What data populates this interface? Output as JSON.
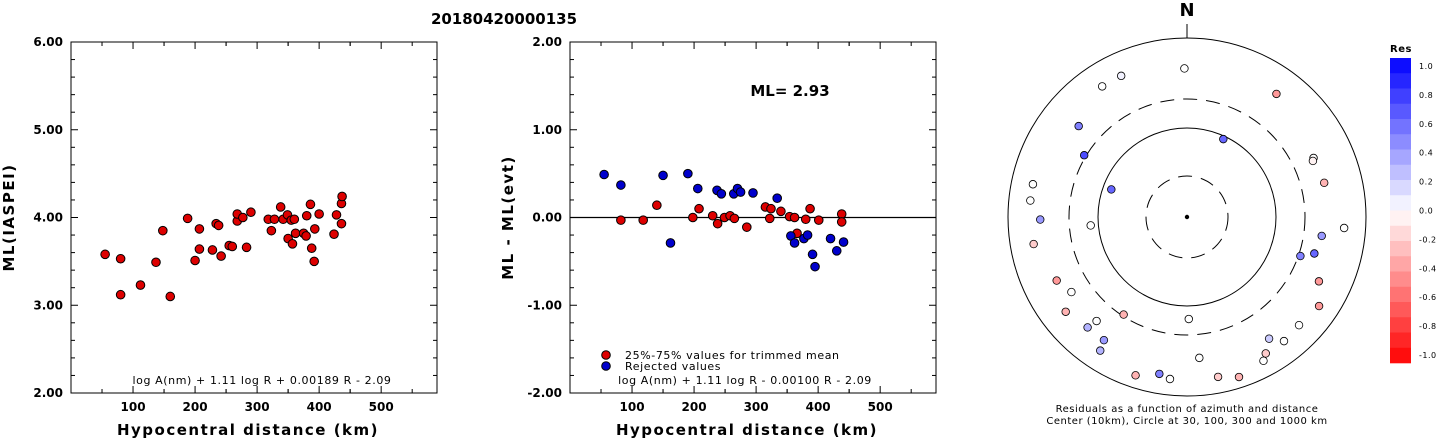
{
  "title": "20180420000135",
  "chart_data": [
    {
      "type": "scatter",
      "xlabel": "Hypocentral distance (km)",
      "ylabel": "ML(IASPEI)",
      "xlim": [
        0,
        590
      ],
      "ylim": [
        2.0,
        6.0
      ],
      "x_ticks": [
        "100",
        "200",
        "300",
        "400",
        "500"
      ],
      "y_ticks": [
        "2.00",
        "3.00",
        "4.00",
        "5.00",
        "6.00"
      ],
      "formula": "log A(nm) + 1.11 log R + 0.00189 R - 2.09",
      "series": [
        {
          "color": "#dd0000",
          "points": [
            [
              55,
              3.58
            ],
            [
              80,
              3.53
            ],
            [
              80,
              3.12
            ],
            [
              112,
              3.23
            ],
            [
              137,
              3.49
            ],
            [
              148,
              3.85
            ],
            [
              160,
              3.1
            ],
            [
              188,
              3.99
            ],
            [
              200,
              3.51
            ],
            [
              207,
              3.87
            ],
            [
              207,
              3.64
            ],
            [
              228,
              3.63
            ],
            [
              234,
              3.93
            ],
            [
              238,
              3.91
            ],
            [
              242,
              3.56
            ],
            [
              255,
              3.68
            ],
            [
              260,
              3.67
            ],
            [
              268,
              3.96
            ],
            [
              268,
              4.04
            ],
            [
              277,
              4.0
            ],
            [
              283,
              3.66
            ],
            [
              290,
              4.06
            ],
            [
              318,
              3.98
            ],
            [
              323,
              3.85
            ],
            [
              328,
              3.98
            ],
            [
              338,
              4.12
            ],
            [
              342,
              3.98
            ],
            [
              349,
              4.03
            ],
            [
              350,
              3.76
            ],
            [
              355,
              3.97
            ],
            [
              357,
              3.7
            ],
            [
              360,
              3.98
            ],
            [
              362,
              3.82
            ],
            [
              375,
              3.82
            ],
            [
              379,
              3.79
            ],
            [
              380,
              4.02
            ],
            [
              386,
              4.15
            ],
            [
              388,
              3.65
            ],
            [
              392,
              3.5
            ],
            [
              393,
              3.87
            ],
            [
              400,
              4.04
            ],
            [
              424,
              3.81
            ],
            [
              428,
              4.03
            ],
            [
              436,
              3.93
            ],
            [
              436,
              4.16
            ],
            [
              437,
              4.24
            ]
          ]
        }
      ]
    },
    {
      "type": "scatter",
      "xlabel": "Hypocentral distance (km)",
      "ylabel": "ML - ML(evt)",
      "xlim": [
        0,
        590
      ],
      "ylim": [
        -2.0,
        2.0
      ],
      "x_ticks": [
        "100",
        "200",
        "300",
        "400",
        "500"
      ],
      "y_ticks": [
        "-2.00",
        "-1.00",
        "0.00",
        "1.00",
        "2.00"
      ],
      "annotation": "ML= 2.93",
      "formula": "log A(nm) + 1.11 log R - 0.00100 R - 2.09",
      "legend": [
        {
          "label": "25%-75% values for trimmed mean",
          "color": "#dd0000"
        },
        {
          "label": "Rejected values",
          "color": "#0000cc"
        }
      ],
      "series": [
        {
          "name": "25%-75% values for trimmed mean",
          "color": "#dd0000",
          "points": [
            [
              82,
              -0.03
            ],
            [
              118,
              -0.03
            ],
            [
              140,
              0.14
            ],
            [
              198,
              0.0
            ],
            [
              208,
              0.1
            ],
            [
              230,
              0.02
            ],
            [
              238,
              -0.07
            ],
            [
              249,
              0.0
            ],
            [
              258,
              0.02
            ],
            [
              265,
              -0.01
            ],
            [
              285,
              -0.11
            ],
            [
              315,
              0.12
            ],
            [
              322,
              -0.01
            ],
            [
              324,
              0.1
            ],
            [
              340,
              0.07
            ],
            [
              354,
              0.01
            ],
            [
              362,
              0.0
            ],
            [
              366,
              -0.18
            ],
            [
              380,
              -0.02
            ],
            [
              387,
              0.1
            ],
            [
              401,
              -0.03
            ],
            [
              438,
              0.04
            ],
            [
              438,
              -0.05
            ]
          ]
        },
        {
          "name": "Rejected values",
          "color": "#0000cc",
          "points": [
            [
              55,
              0.49
            ],
            [
              82,
              0.37
            ],
            [
              150,
              0.48
            ],
            [
              162,
              -0.29
            ],
            [
              190,
              0.5
            ],
            [
              206,
              0.33
            ],
            [
              237,
              0.31
            ],
            [
              244,
              0.27
            ],
            [
              264,
              0.27
            ],
            [
              270,
              0.33
            ],
            [
              275,
              0.29
            ],
            [
              295,
              0.28
            ],
            [
              334,
              0.22
            ],
            [
              356,
              -0.21
            ],
            [
              362,
              -0.29
            ],
            [
              377,
              -0.24
            ],
            [
              383,
              -0.2
            ],
            [
              391,
              -0.42
            ],
            [
              395,
              -0.56
            ],
            [
              420,
              -0.24
            ],
            [
              430,
              -0.38
            ],
            [
              441,
              -0.28
            ]
          ]
        }
      ]
    },
    {
      "type": "scatter",
      "subtype": "polar",
      "north_label": "N",
      "caption_line1": "Residuals as a function of azimuth and distance",
      "caption_line2": "Center (10km), Circle at 30, 100, 300 and 1000 km",
      "rings_km": [
        30,
        100,
        300,
        1000
      ],
      "colorbar": {
        "title": "Res",
        "labels": [
          "1.0",
          "0.8",
          "0.6",
          "0.4",
          "0.2",
          "0.0",
          "-0.2",
          "-0.4",
          "-0.6",
          "-0.8",
          "-1.0"
        ]
      },
      "points": [
        {
          "az": 327,
          "r": 0.87,
          "res": 0.0
        },
        {
          "az": 335,
          "r": 0.87,
          "res": 0.05
        },
        {
          "az": 359,
          "r": 0.83,
          "res": 0.0
        },
        {
          "az": 36,
          "r": 0.85,
          "res": -0.4
        },
        {
          "az": 65,
          "r": 0.78,
          "res": 0.0
        },
        {
          "az": 66,
          "r": 0.77,
          "res": -0.05
        },
        {
          "az": 76,
          "r": 0.79,
          "res": -0.3
        },
        {
          "az": 310,
          "r": 0.79,
          "res": 0.5
        },
        {
          "az": 301,
          "r": 0.67,
          "res": 0.7
        },
        {
          "az": 25,
          "r": 0.48,
          "res": 0.6
        },
        {
          "az": 290,
          "r": 0.45,
          "res": 0.6
        },
        {
          "az": 282,
          "r": 0.88,
          "res": 0.0
        },
        {
          "az": 276,
          "r": 0.88,
          "res": 0.0
        },
        {
          "az": 269,
          "r": 0.82,
          "res": 0.4
        },
        {
          "az": 260,
          "r": 0.87,
          "res": -0.2
        },
        {
          "az": 265,
          "r": 0.54,
          "res": 0.0
        },
        {
          "az": 98,
          "r": 0.76,
          "res": 0.4
        },
        {
          "az": 94,
          "r": 0.88,
          "res": 0.0
        },
        {
          "az": 106,
          "r": 0.74,
          "res": 0.6
        },
        {
          "az": 109,
          "r": 0.67,
          "res": 0.5
        },
        {
          "az": 116,
          "r": 0.82,
          "res": -0.4
        },
        {
          "az": 244,
          "r": 0.81,
          "res": -0.4
        },
        {
          "az": 237,
          "r": 0.77,
          "res": 0.0
        },
        {
          "az": 232,
          "r": 0.86,
          "res": -0.3
        },
        {
          "az": 222,
          "r": 0.83,
          "res": 0.3
        },
        {
          "az": 221,
          "r": 0.77,
          "res": 0.0
        },
        {
          "az": 214,
          "r": 0.83,
          "res": 0.4
        },
        {
          "az": 213,
          "r": 0.89,
          "res": 0.3
        },
        {
          "az": 213,
          "r": 0.65,
          "res": -0.3
        },
        {
          "az": 198,
          "r": 0.93,
          "res": -0.3
        },
        {
          "az": 190,
          "r": 0.89,
          "res": 0.5
        },
        {
          "az": 186,
          "r": 0.91,
          "res": 0.0
        },
        {
          "az": 175,
          "r": 0.79,
          "res": 0.0
        },
        {
          "az": 169,
          "r": 0.91,
          "res": -0.2
        },
        {
          "az": 162,
          "r": 0.94,
          "res": -0.3
        },
        {
          "az": 152,
          "r": 0.91,
          "res": 0.0
        },
        {
          "az": 150,
          "r": 0.88,
          "res": -0.2
        },
        {
          "az": 146,
          "r": 0.82,
          "res": 0.2
        },
        {
          "az": 142,
          "r": 0.88,
          "res": 0.0
        },
        {
          "az": 134,
          "r": 0.87,
          "res": 0.0
        },
        {
          "az": 124,
          "r": 0.89,
          "res": -0.4
        },
        {
          "az": 179,
          "r": 0.57,
          "res": 0.0
        }
      ]
    }
  ]
}
